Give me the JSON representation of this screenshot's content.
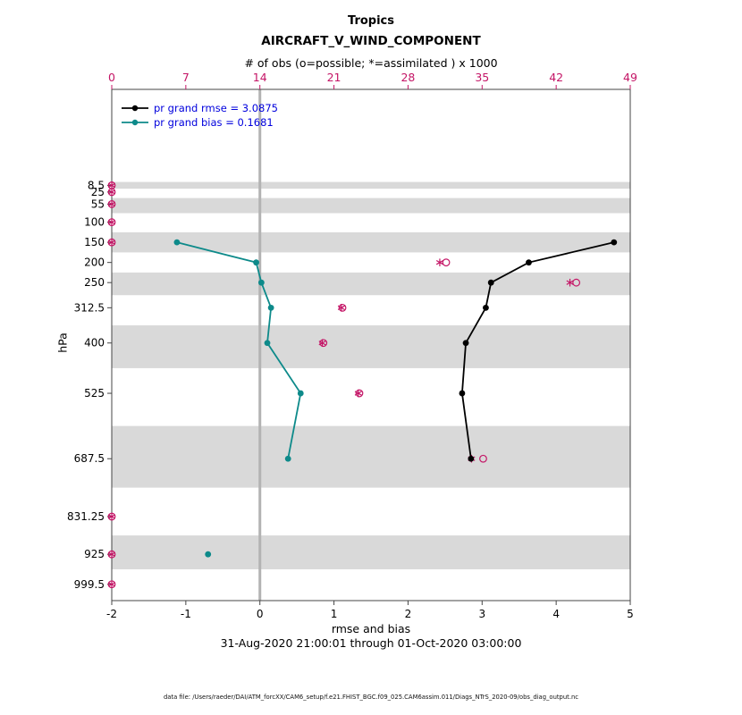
{
  "chart_data": {
    "type": "line",
    "title": "Tropics",
    "subtitle": "AIRCRAFT_V_WIND_COMPONENT",
    "top_axis_label": "# of obs (o=possible; *=assimilated ) x 1000",
    "xlabel": "rmse and bias",
    "ylabel": "hPa",
    "footer_date": "31-Aug-2020 21:00:01 through 01-Oct-2020 03:00:00",
    "datafile_note": "data file: /Users/raeder/DAI/ATM_forcXX/CAM6_setup/f.e21.FHIST_BGC.f09_025.CAM6assim.011/Diags_NTrS_2020-09/obs_diag_output.nc",
    "xlim": [
      -2,
      5
    ],
    "top_xlim": [
      0,
      49
    ],
    "ylim_pressure": [
      -230,
      1040
    ],
    "xticks": [
      -2,
      -1,
      0,
      1,
      2,
      3,
      4,
      5
    ],
    "top_xticks": [
      0,
      7,
      14,
      21,
      28,
      35,
      42,
      49
    ],
    "levels": [
      8.5,
      25,
      55,
      100,
      150,
      200,
      250,
      312.5,
      400,
      525,
      687.5,
      831.25,
      925,
      999.5
    ],
    "shaded_level_indices": [
      0,
      2,
      4,
      6,
      8,
      10,
      12
    ],
    "colors": {
      "obs": "#c41566",
      "rmse": "#000000",
      "bias": "#0d8a8a",
      "legend_text": "#0000dd",
      "band": "#d9d9d9",
      "zero_line": "#b3b3b3",
      "axis": "#444444"
    },
    "series": [
      {
        "name": "pr grand rmse = 3.0875",
        "color": "#000000",
        "points": [
          {
            "p": 150,
            "x": 4.78
          },
          {
            "p": 200,
            "x": 3.63
          },
          {
            "p": 250,
            "x": 3.12
          },
          {
            "p": 312.5,
            "x": 3.05
          },
          {
            "p": 400,
            "x": 2.78
          },
          {
            "p": 525,
            "x": 2.73
          },
          {
            "p": 687.5,
            "x": 2.85
          }
        ],
        "isolated_points": []
      },
      {
        "name": "pr grand bias = 0.1681",
        "color": "#0d8a8a",
        "points": [
          {
            "p": 150,
            "x": -1.12
          },
          {
            "p": 200,
            "x": -0.05
          },
          {
            "p": 250,
            "x": 0.02
          },
          {
            "p": 312.5,
            "x": 0.15
          },
          {
            "p": 400,
            "x": 0.1
          },
          {
            "p": 525,
            "x": 0.55
          },
          {
            "p": 687.5,
            "x": 0.38
          }
        ],
        "isolated_points": [
          {
            "p": 925,
            "x": -0.7
          }
        ]
      }
    ],
    "obs_counts_x1000": [
      {
        "p": 8.5,
        "possible": 0,
        "assimilated": 0
      },
      {
        "p": 25,
        "possible": 0,
        "assimilated": 0
      },
      {
        "p": 55,
        "possible": 0,
        "assimilated": 0
      },
      {
        "p": 100,
        "possible": 0,
        "assimilated": 0
      },
      {
        "p": 150,
        "possible": 0,
        "assimilated": 0
      },
      {
        "p": 200,
        "possible": 31.6,
        "assimilated": 31.0
      },
      {
        "p": 250,
        "possible": 43.9,
        "assimilated": 43.3
      },
      {
        "p": 312.5,
        "possible": 21.8,
        "assimilated": 21.7
      },
      {
        "p": 400,
        "possible": 20.0,
        "assimilated": 19.9
      },
      {
        "p": 525,
        "possible": 23.4,
        "assimilated": 23.3
      },
      {
        "p": 687.5,
        "possible": 35.1,
        "assimilated": 34.0
      },
      {
        "p": 831.25,
        "possible": 0,
        "assimilated": 0
      },
      {
        "p": 925,
        "possible": 0,
        "assimilated": 0
      },
      {
        "p": 999.5,
        "possible": 0,
        "assimilated": 0
      }
    ],
    "legend": [
      {
        "label": "pr grand rmse = 3.0875",
        "color": "#000000"
      },
      {
        "label": "pr grand bias = 0.1681",
        "color": "#0d8a8a"
      }
    ]
  }
}
